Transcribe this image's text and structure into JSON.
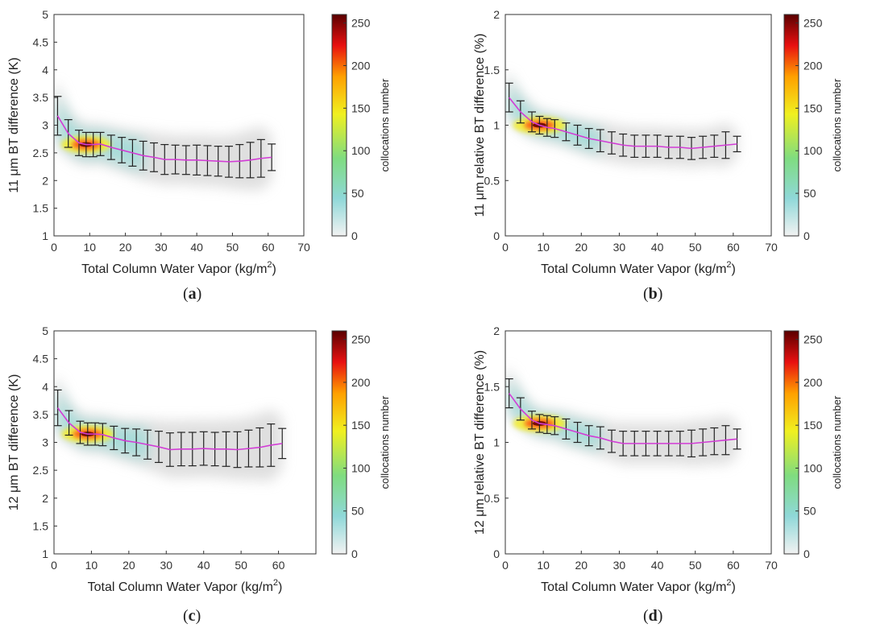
{
  "colorbar": {
    "label": "collocations number",
    "ticks": [
      0,
      50,
      100,
      150,
      200,
      250
    ],
    "max": 260
  },
  "colors": {
    "mean_line": "#d23cd6",
    "error_bar": "#222222",
    "axis": "#333333"
  },
  "chart_data": [
    {
      "type": "scatter",
      "panel": "a",
      "panel_label": "a",
      "ylabel": "11 μm BT difference (K)",
      "xlabel": "Total Column Water Vapor (kg/m",
      "xlabel_sup": "2",
      "xlabel_end": ")",
      "xlim": [
        0,
        70
      ],
      "ylim": [
        1,
        5
      ],
      "xticks": [
        "0",
        "10",
        "20",
        "30",
        "40",
        "50",
        "60",
        "70"
      ],
      "yticks": [
        "1",
        "1.5",
        "2",
        "2.5",
        "3",
        "3.5",
        "4",
        "4.5",
        "5"
      ],
      "series": [
        {
          "name": "mean",
          "x": [
            1,
            4,
            7,
            9,
            11,
            13,
            16,
            19,
            22,
            25,
            28,
            31,
            34,
            37,
            40,
            43,
            46,
            49,
            52,
            55,
            58,
            61
          ],
          "y": [
            3.17,
            2.85,
            2.68,
            2.65,
            2.65,
            2.66,
            2.6,
            2.55,
            2.5,
            2.45,
            2.42,
            2.38,
            2.38,
            2.37,
            2.37,
            2.36,
            2.35,
            2.34,
            2.35,
            2.37,
            2.4,
            2.42
          ],
          "err": [
            0.35,
            0.25,
            0.23,
            0.22,
            0.22,
            0.21,
            0.22,
            0.23,
            0.24,
            0.26,
            0.26,
            0.27,
            0.26,
            0.26,
            0.27,
            0.27,
            0.27,
            0.28,
            0.3,
            0.32,
            0.34,
            0.24
          ]
        }
      ],
      "density_center": [
        9,
        2.65
      ]
    },
    {
      "type": "scatter",
      "panel": "b",
      "panel_label": "b",
      "ylabel": "11 μm relative BT difference (%)",
      "xlabel": "Total Column Water Vapor (kg/m",
      "xlabel_sup": "2",
      "xlabel_end": ")",
      "xlim": [
        0,
        70
      ],
      "ylim": [
        0,
        2
      ],
      "xticks": [
        "0",
        "10",
        "20",
        "30",
        "40",
        "50",
        "60",
        "70"
      ],
      "yticks": [
        "0",
        "0.5",
        "1",
        "1.5",
        "2"
      ],
      "series": [
        {
          "name": "mean",
          "x": [
            1,
            4,
            7,
            9,
            11,
            13,
            16,
            19,
            22,
            25,
            28,
            31,
            34,
            37,
            40,
            43,
            46,
            49,
            52,
            55,
            58,
            61
          ],
          "y": [
            1.25,
            1.12,
            1.03,
            1.0,
            0.98,
            0.97,
            0.94,
            0.91,
            0.88,
            0.86,
            0.84,
            0.82,
            0.81,
            0.81,
            0.81,
            0.8,
            0.8,
            0.79,
            0.8,
            0.81,
            0.82,
            0.83
          ],
          "err": [
            0.13,
            0.1,
            0.09,
            0.08,
            0.08,
            0.08,
            0.08,
            0.09,
            0.09,
            0.1,
            0.1,
            0.1,
            0.1,
            0.1,
            0.1,
            0.1,
            0.1,
            0.1,
            0.1,
            0.1,
            0.12,
            0.07
          ]
        }
      ],
      "density_center": [
        9,
        1.0
      ]
    },
    {
      "type": "scatter",
      "panel": "c",
      "panel_label": "c",
      "ylabel": "12 μm BT difference (K)",
      "xlabel": "Total Column Water Vapor (kg/m",
      "xlabel_sup": "2",
      "xlabel_end": ")",
      "xlim": [
        0,
        70
      ],
      "ylim": [
        1,
        5
      ],
      "xticks": [
        "0",
        "10",
        "20",
        "30",
        "40",
        "50",
        "60"
      ],
      "yticks": [
        "1",
        "1.5",
        "2",
        "2.5",
        "3",
        "3.5",
        "4",
        "4.5",
        "5"
      ],
      "series": [
        {
          "name": "mean",
          "x": [
            1,
            4,
            7,
            9,
            11,
            13,
            16,
            19,
            22,
            25,
            28,
            31,
            34,
            37,
            40,
            43,
            46,
            49,
            52,
            55,
            58,
            61
          ],
          "y": [
            3.62,
            3.35,
            3.18,
            3.15,
            3.15,
            3.14,
            3.08,
            3.03,
            3.0,
            2.96,
            2.92,
            2.87,
            2.88,
            2.88,
            2.89,
            2.88,
            2.88,
            2.87,
            2.89,
            2.91,
            2.95,
            2.98
          ],
          "err": [
            0.32,
            0.22,
            0.2,
            0.2,
            0.2,
            0.2,
            0.21,
            0.22,
            0.24,
            0.26,
            0.28,
            0.3,
            0.3,
            0.3,
            0.3,
            0.3,
            0.31,
            0.32,
            0.33,
            0.35,
            0.38,
            0.27
          ]
        }
      ],
      "density_center": [
        9,
        3.15
      ]
    },
    {
      "type": "scatter",
      "panel": "d",
      "panel_label": "d",
      "ylabel": "12 μm relative BT difference (%)",
      "xlabel": "Total Column Water Vapor (kg/m",
      "xlabel_sup": "2",
      "xlabel_end": ")",
      "xlim": [
        0,
        70
      ],
      "ylim": [
        0,
        2
      ],
      "xticks": [
        "0",
        "10",
        "20",
        "30",
        "40",
        "50",
        "60",
        "70"
      ],
      "yticks": [
        "0",
        "0.5",
        "1",
        "1.5",
        "2"
      ],
      "series": [
        {
          "name": "mean",
          "x": [
            1,
            4,
            7,
            9,
            11,
            13,
            16,
            19,
            22,
            25,
            28,
            31,
            34,
            37,
            40,
            43,
            46,
            49,
            52,
            55,
            58,
            61
          ],
          "y": [
            1.44,
            1.3,
            1.2,
            1.17,
            1.16,
            1.15,
            1.12,
            1.09,
            1.06,
            1.04,
            1.01,
            0.99,
            0.99,
            0.99,
            0.99,
            0.99,
            0.99,
            0.99,
            1.0,
            1.01,
            1.02,
            1.03
          ],
          "err": [
            0.13,
            0.1,
            0.08,
            0.08,
            0.08,
            0.08,
            0.09,
            0.09,
            0.09,
            0.1,
            0.1,
            0.11,
            0.11,
            0.11,
            0.11,
            0.11,
            0.11,
            0.12,
            0.12,
            0.12,
            0.13,
            0.09
          ]
        }
      ],
      "density_center": [
        9,
        1.17
      ]
    }
  ]
}
